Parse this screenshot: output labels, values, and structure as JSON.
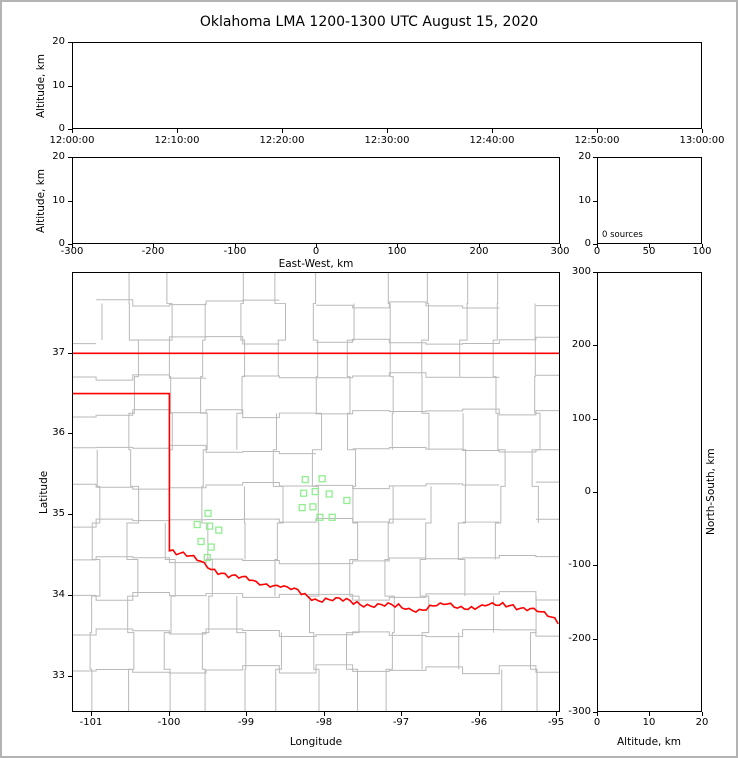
{
  "title": "Oklahoma LMA 1200-1300 UTC August 15, 2020",
  "colors": {
    "background": "#ffffff",
    "frame_border": "#b3b3b3",
    "axis": "#000000",
    "county_line": "#b9b9b9",
    "state_border": "#ff0000",
    "station_marker": "#90ee90"
  },
  "chart_data": [
    {
      "panel": "altitude_vs_time",
      "type": "scatter",
      "ylabel": "Altitude, km",
      "ylim": [
        0,
        20
      ],
      "y_ticks": [
        0,
        10,
        20
      ],
      "x_tick_labels": [
        "12:00:00",
        "12:10:00",
        "12:20:00",
        "12:30:00",
        "12:40:00",
        "12:50:00",
        "13:00:00"
      ],
      "points": []
    },
    {
      "panel": "altitude_vs_east_west",
      "type": "scatter",
      "xlabel": "East-West, km",
      "ylabel": "Altitude, km",
      "xlim": [
        -300,
        300
      ],
      "ylim": [
        0,
        20
      ],
      "x_ticks": [
        -300,
        -200,
        -100,
        0,
        100,
        200,
        300
      ],
      "y_ticks": [
        0,
        10,
        20
      ],
      "points": []
    },
    {
      "panel": "source_count_histogram",
      "type": "histogram",
      "annotation": "0 sources",
      "xlim": [
        0,
        100
      ],
      "ylim": [
        0,
        20
      ],
      "x_ticks": [
        0,
        50,
        100
      ],
      "y_ticks": [
        0,
        10,
        20
      ],
      "values": []
    },
    {
      "panel": "plan_view_map",
      "type": "scatter",
      "xlabel": "Longitude",
      "ylabel": "Latitude",
      "xlim": [
        -101.25,
        -94.95
      ],
      "ylim": [
        32.55,
        38.0
      ],
      "x_ticks": [
        -101,
        -100,
        -99,
        -98,
        -97,
        -96,
        -95
      ],
      "y_ticks": [
        33,
        34,
        35,
        36,
        37
      ],
      "series": [
        {
          "name": "LMA station locations",
          "marker": "open-square",
          "color": "#90ee90",
          "points": [
            [
              -98.24,
              35.43
            ],
            [
              -98.02,
              35.44
            ],
            [
              -98.26,
              35.26
            ],
            [
              -98.11,
              35.28
            ],
            [
              -97.93,
              35.25
            ],
            [
              -98.28,
              35.08
            ],
            [
              -98.14,
              35.09
            ],
            [
              -97.7,
              35.17
            ],
            [
              -98.05,
              34.96
            ],
            [
              -97.89,
              34.96
            ],
            [
              -99.5,
              35.01
            ],
            [
              -99.64,
              34.87
            ],
            [
              -99.48,
              34.85
            ],
            [
              -99.36,
              34.8
            ],
            [
              -99.59,
              34.66
            ],
            [
              -99.46,
              34.59
            ],
            [
              -99.51,
              34.46
            ]
          ]
        }
      ],
      "overlays": [
        "county-boundaries",
        "oklahoma-state-border",
        "red-river"
      ]
    },
    {
      "panel": "north_south_vs_altitude",
      "type": "scatter",
      "xlabel": "Altitude, km",
      "ylabel": "North-South, km",
      "xlim": [
        0,
        20
      ],
      "ylim": [
        -300,
        300
      ],
      "x_ticks": [
        0,
        10,
        20
      ],
      "y_ticks": [
        -300,
        -200,
        -100,
        0,
        100,
        200,
        300
      ],
      "points": []
    }
  ]
}
